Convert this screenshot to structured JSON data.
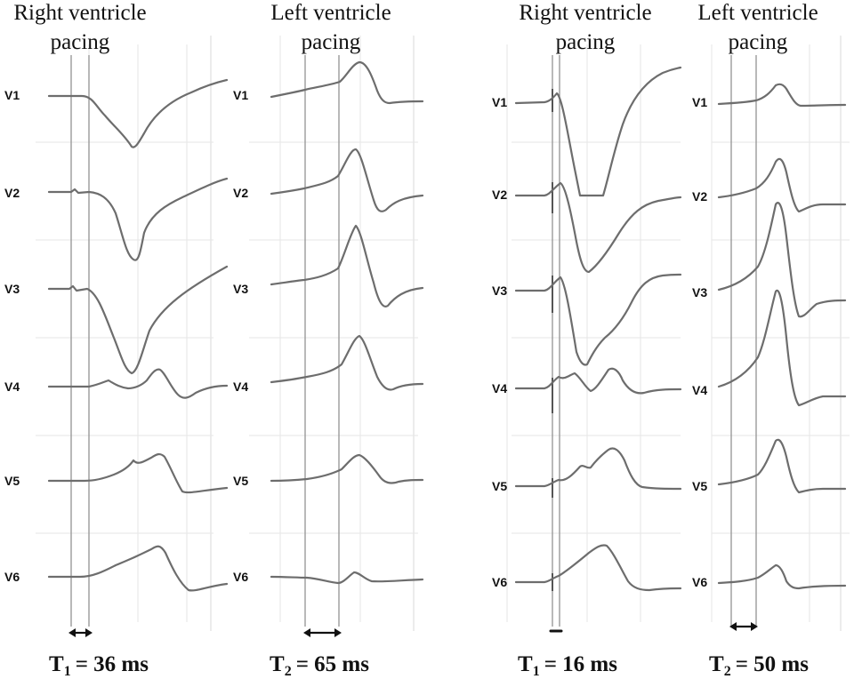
{
  "panels": [
    {
      "key": "rv1",
      "title_line1": "Right ventricle",
      "title_line2": "pacing",
      "leads": [
        "V1",
        "V2",
        "V3",
        "V4",
        "V5",
        "V6"
      ],
      "interval_symbol": "T",
      "interval_sub": "1",
      "interval_value": "= 36 ms"
    },
    {
      "key": "lv1",
      "title_line1": "Left ventricle",
      "title_line2": "pacing",
      "leads": [
        "V1",
        "V2",
        "V3",
        "V4",
        "V5",
        "V6"
      ],
      "interval_symbol": "T",
      "interval_sub": "2",
      "interval_value": "= 65 ms"
    },
    {
      "key": "rv2",
      "title_line1": "Right ventricle",
      "title_line2": "pacing",
      "leads": [
        "V1",
        "V2",
        "V3",
        "V4",
        "V5",
        "V6"
      ],
      "interval_symbol": "T",
      "interval_sub": "1",
      "interval_value": "= 16 ms"
    },
    {
      "key": "lv2",
      "title_line1": "Left ventricle",
      "title_line2": "pacing",
      "leads": [
        "V1",
        "V2",
        "V3",
        "V4",
        "V5",
        "V6"
      ],
      "interval_symbol": "T",
      "interval_sub": "2",
      "interval_value": "= 50 ms"
    }
  ]
}
